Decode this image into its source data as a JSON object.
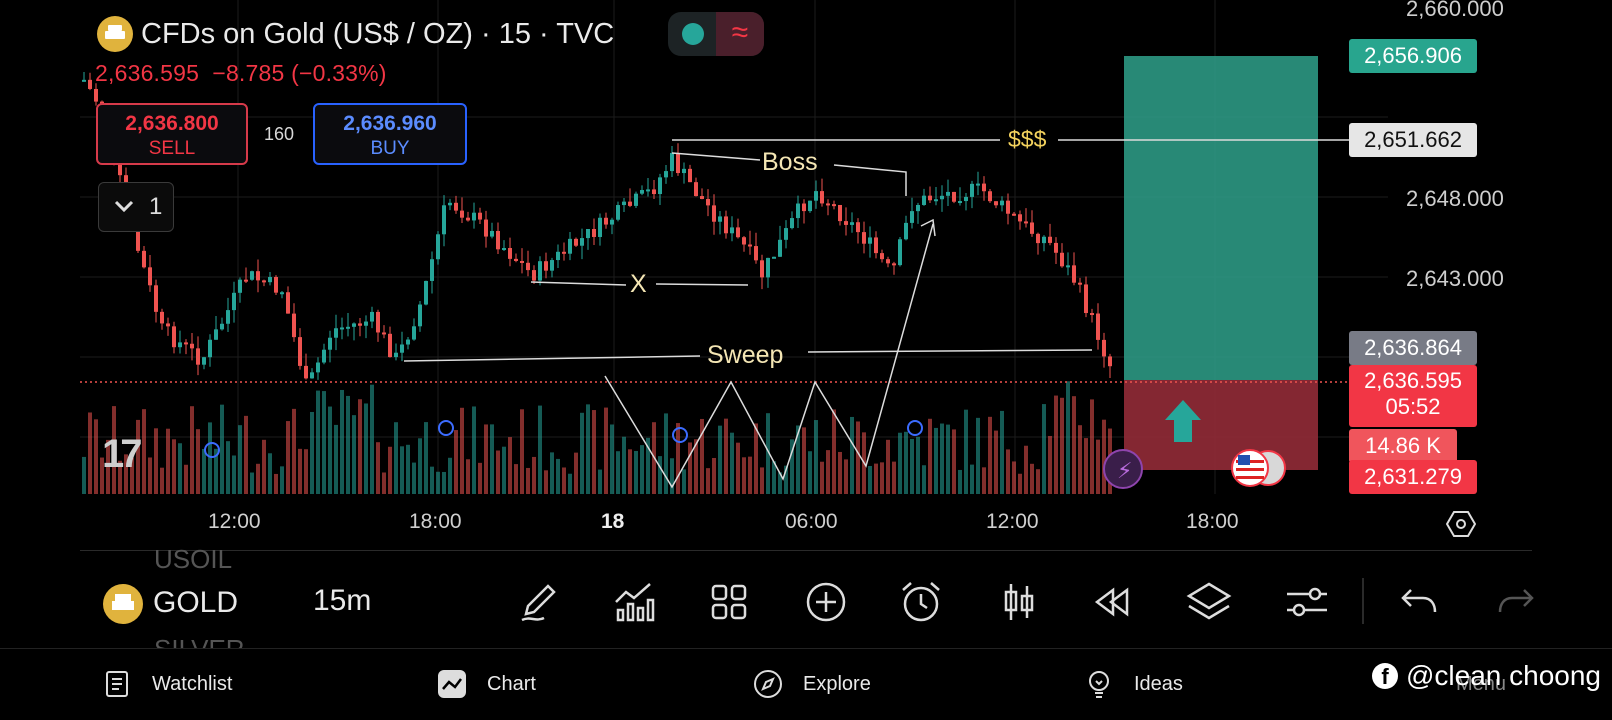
{
  "header": {
    "title": "CFDs on Gold (US$ / OZ) · 15 · TVC",
    "last_price": "2,636.595",
    "change": "−8.785 (−0.33%)",
    "status_wave_glyph": "≈"
  },
  "trade": {
    "sell_price": "2,636.800",
    "sell_label": "SELL",
    "buy_price": "2,636.960",
    "buy_label": "BUY",
    "spread": "160"
  },
  "indicators_count": "1",
  "price_axis": {
    "ticks": [
      "2,660.000",
      "2,648.000",
      "2,643.000"
    ],
    "target_label": "2,656.906",
    "liquidity_label": "2,651.662",
    "entry_label": "2,636.864",
    "current_label": "2,636.595",
    "countdown": "05:52",
    "volume_label": "14.86 K",
    "stop_label": "2,631.279"
  },
  "time_axis": [
    "12:00",
    "18:00",
    "18",
    "06:00",
    "12:00",
    "18:00"
  ],
  "annotations": {
    "boss": "Boss",
    "dollars": "$$$",
    "x": "X",
    "sweep": "Sweep"
  },
  "colors": {
    "up": "#26a69a",
    "down": "#ef5350",
    "accent_red": "#f23645",
    "accent_blue": "#2962ff",
    "gold": "#e0b33d"
  },
  "logo_text": "17",
  "toolbar": {
    "symbol": "GOLD",
    "symbol_above": "USOIL",
    "symbol_below": "SILVER",
    "interval": "15m",
    "tools": [
      "pencil-icon",
      "indicators-icon",
      "grid-icon",
      "plus-circle-icon",
      "alarm-icon",
      "candle-icon",
      "replay-icon",
      "layers-icon",
      "settings-sliders-icon",
      "undo-icon",
      "redo-icon"
    ]
  },
  "nav": {
    "watchlist": "Watchlist",
    "chart": "Chart",
    "explore": "Explore",
    "ideas": "Ideas",
    "menu": "Menu"
  },
  "watermark": "@clean choong"
}
